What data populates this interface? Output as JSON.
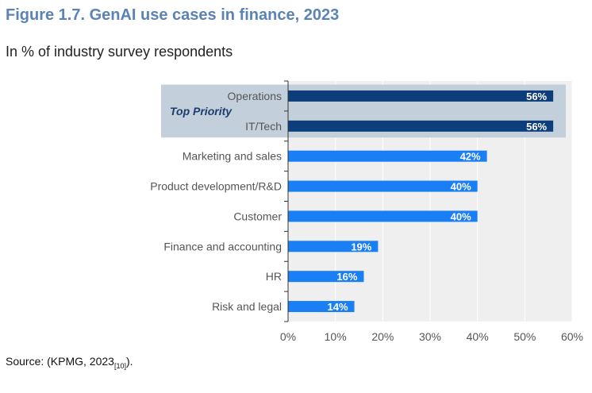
{
  "figure": {
    "title": "Figure 1.7. GenAI use cases in finance, 2023",
    "subtitle": "In % of industry survey respondents",
    "source_prefix": "Source: (KPMG, 2023",
    "source_ref": "[10]",
    "source_suffix": ")."
  },
  "chart_data": {
    "type": "bar",
    "orientation": "horizontal",
    "categories": [
      "Operations",
      "IT/Tech",
      "Marketing and sales",
      "Product development/R&D",
      "Customer",
      "Finance and accounting",
      "HR",
      "Risk and legal"
    ],
    "values": [
      56,
      56,
      42,
      40,
      40,
      19,
      16,
      14
    ],
    "value_labels": [
      "56%",
      "56%",
      "42%",
      "40%",
      "40%",
      "19%",
      "16%",
      "14%"
    ],
    "highlight": {
      "label": "Top Priority",
      "categories": [
        "Operations",
        "IT/Tech"
      ]
    },
    "xlim": [
      0,
      60
    ],
    "xticks": [
      0,
      10,
      20,
      30,
      40,
      50,
      60
    ],
    "xtick_labels": [
      "0%",
      "10%",
      "20%",
      "30%",
      "40%",
      "50%",
      "60%"
    ],
    "grid": true,
    "colors": {
      "highlight_bar": "#0d3d7a",
      "bar": "#1a7ef5",
      "highlight_band": "#c3d0dc",
      "plot_bg": "#efefef",
      "grid": "#ffffff"
    }
  }
}
